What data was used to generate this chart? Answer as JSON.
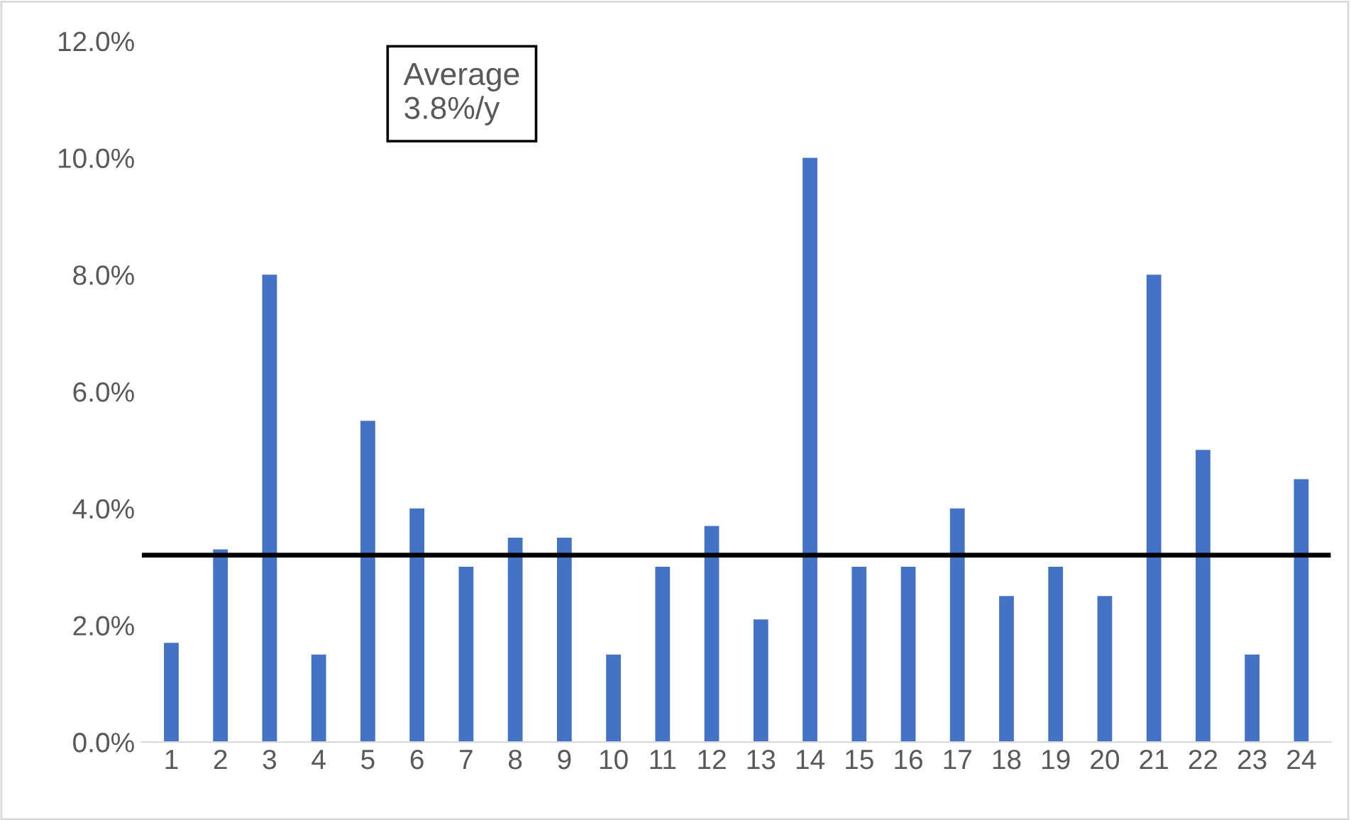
{
  "chart_data": {
    "type": "bar",
    "categories": [
      "1",
      "2",
      "3",
      "4",
      "5",
      "6",
      "7",
      "8",
      "9",
      "10",
      "11",
      "12",
      "13",
      "14",
      "15",
      "16",
      "17",
      "18",
      "19",
      "20",
      "21",
      "22",
      "23",
      "24"
    ],
    "series": [
      {
        "color": "#4472c4",
        "values": [
          1.7,
          3.3,
          8.0,
          1.5,
          5.5,
          4.0,
          3.0,
          3.5,
          3.5,
          1.5,
          3.0,
          3.7,
          2.1,
          10.0,
          3.0,
          3.0,
          4.0,
          2.5,
          3.0,
          2.5,
          8.0,
          5.0,
          1.5,
          4.5
        ]
      }
    ],
    "ylim": [
      0,
      12
    ],
    "yticks": [
      {
        "value": 0,
        "label": "0.0%"
      },
      {
        "value": 2,
        "label": "2.0%"
      },
      {
        "value": 4,
        "label": "4.0%"
      },
      {
        "value": 6,
        "label": "6.0%"
      },
      {
        "value": 8,
        "label": "8.0%"
      },
      {
        "value": 10,
        "label": "10.0%"
      },
      {
        "value": 12,
        "label": "12.0%"
      }
    ],
    "ref_lines": [
      {
        "axis": "y",
        "value": 3.2,
        "color": "#000000",
        "line_style": "solid"
      }
    ],
    "annotations": [
      "Average\n3.8%/y"
    ],
    "grid": false,
    "legend": false
  }
}
